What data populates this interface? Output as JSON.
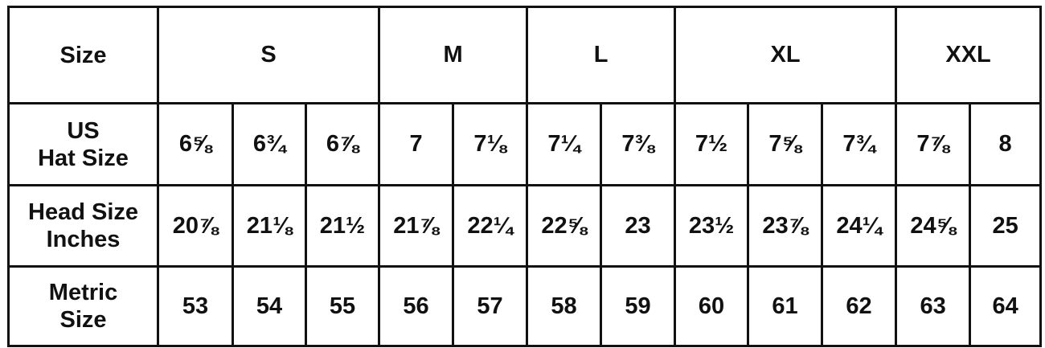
{
  "header": {
    "label": "Size",
    "groups": [
      {
        "name": "S",
        "span": 3
      },
      {
        "name": "M",
        "span": 2
      },
      {
        "name": "L",
        "span": 2
      },
      {
        "name": "XL",
        "span": 3
      },
      {
        "name": "XXL",
        "span": 2
      }
    ]
  },
  "rows": [
    {
      "label": [
        "US",
        "Hat Size"
      ],
      "values": [
        "6⅝",
        "6¾",
        "6⅞",
        "7",
        "7⅛",
        "7¼",
        "7⅜",
        "7½",
        "7⅝",
        "7¾",
        "7⅞",
        "8"
      ]
    },
    {
      "label": [
        "Head Size",
        "Inches"
      ],
      "values": [
        "20⅞",
        "21⅛",
        "21½",
        "21⅞",
        "22¼",
        "22⅝",
        "23",
        "23½",
        "23⅞",
        "24¼",
        "24⅝",
        "25"
      ]
    },
    {
      "label": [
        "Metric",
        "Size"
      ],
      "values": [
        "53",
        "54",
        "55",
        "56",
        "57",
        "58",
        "59",
        "60",
        "61",
        "62",
        "63",
        "64"
      ]
    }
  ]
}
